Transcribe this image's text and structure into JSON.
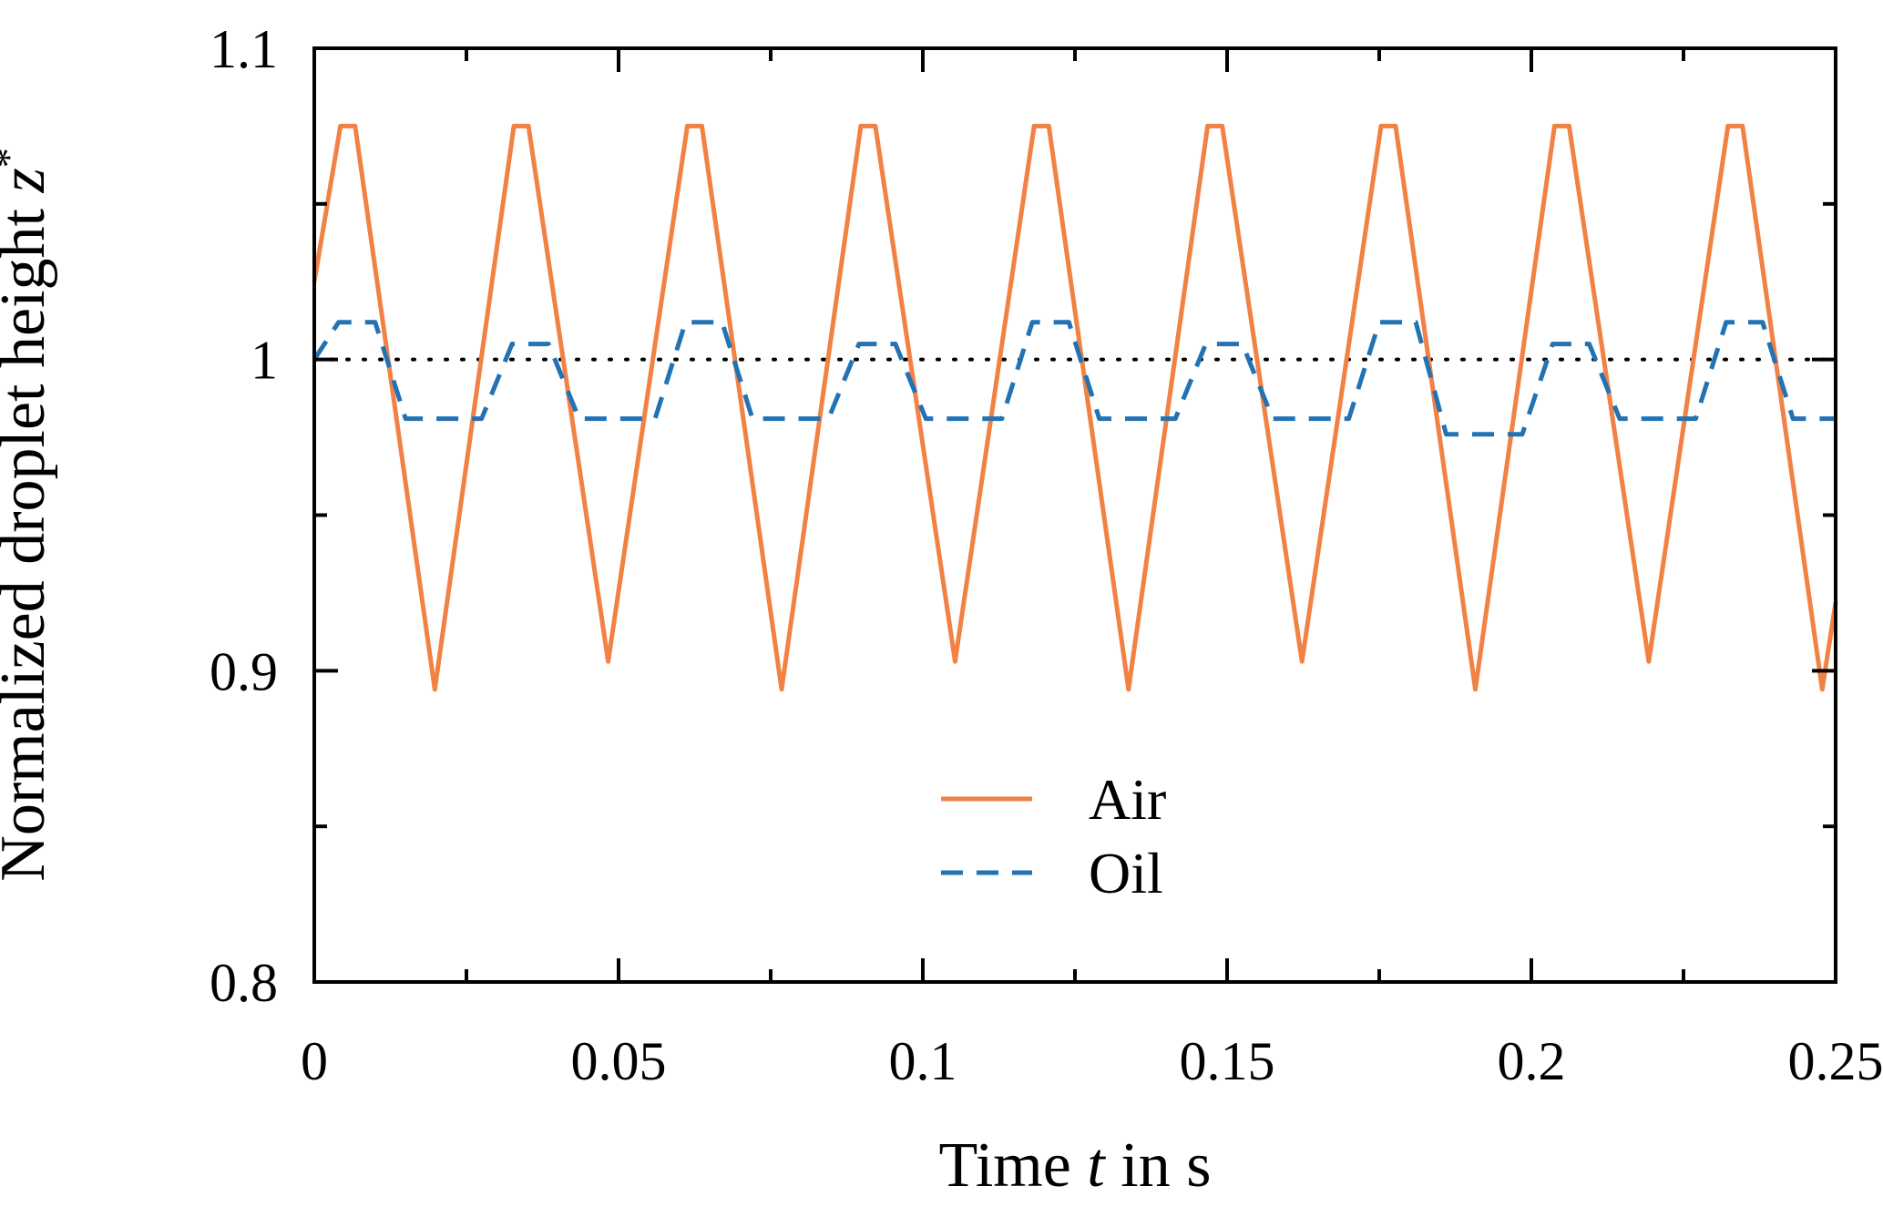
{
  "page": {
    "background": "#ffffff"
  },
  "chart_data": {
    "type": "line",
    "title": "",
    "xlabel": "Time t in s",
    "xlabel_parts": {
      "prefix": "Time ",
      "math": "t",
      "suffix": " in s"
    },
    "ylabel": "Normalized droplet height z*",
    "ylabel_parts": {
      "prefix": "Normalized droplet height ",
      "math": "z",
      "sup": "*"
    },
    "xlim": [
      0,
      0.25
    ],
    "ylim": [
      0.8,
      1.1
    ],
    "grid": "off",
    "axis_color": "#000000",
    "x_major_ticks": [
      {
        "v": 0,
        "label": "0"
      },
      {
        "v": 0.05,
        "label": "0.05"
      },
      {
        "v": 0.1,
        "label": "0.1"
      },
      {
        "v": 0.15,
        "label": "0.15"
      },
      {
        "v": 0.2,
        "label": "0.2"
      },
      {
        "v": 0.25,
        "label": "0.25"
      }
    ],
    "x_minor_ticks": [
      0.025,
      0.075,
      0.125,
      0.175,
      0.225
    ],
    "y_major_ticks": [
      {
        "v": 0.8,
        "label": "0.8"
      },
      {
        "v": 0.9,
        "label": "0.9"
      },
      {
        "v": 1.0,
        "label": "1"
      },
      {
        "v": 1.1,
        "label": "1.1"
      }
    ],
    "y_minor_ticks": [
      0.85,
      0.95,
      1.05
    ],
    "reference_line": {
      "y": 1.0,
      "style": "dotted",
      "color": "#000000"
    },
    "legend": {
      "position": "inside-lower-center",
      "entries": [
        "Air",
        "Oil"
      ]
    },
    "series": [
      {
        "name": "Air",
        "color": "#f28144",
        "dash": "solid",
        "waveform": "triangle oscillation, period ~0.0285 s, peaks ~1.075, valleys ~0.894-0.903",
        "points": [
          [
            0,
            1.025
          ],
          [
            0.0043,
            1.075
          ],
          [
            0.0067,
            1.075
          ],
          [
            0.0198,
            0.894
          ],
          [
            0.0328,
            1.075
          ],
          [
            0.0352,
            1.075
          ],
          [
            0.0483,
            0.903
          ],
          [
            0.0613,
            1.075
          ],
          [
            0.0637,
            1.075
          ],
          [
            0.0768,
            0.894
          ],
          [
            0.0898,
            1.075
          ],
          [
            0.0922,
            1.075
          ],
          [
            0.1053,
            0.903
          ],
          [
            0.1183,
            1.075
          ],
          [
            0.1207,
            1.075
          ],
          [
            0.1338,
            0.894
          ],
          [
            0.1468,
            1.075
          ],
          [
            0.1492,
            1.075
          ],
          [
            0.1623,
            0.903
          ],
          [
            0.1753,
            1.075
          ],
          [
            0.1777,
            1.075
          ],
          [
            0.1908,
            0.894
          ],
          [
            0.2038,
            1.075
          ],
          [
            0.2062,
            1.075
          ],
          [
            0.2193,
            0.903
          ],
          [
            0.2323,
            1.075
          ],
          [
            0.2347,
            1.075
          ],
          [
            0.2478,
            0.894
          ],
          [
            0.25,
            0.922
          ]
        ]
      },
      {
        "name": "Oil",
        "color": "#2272b4",
        "dash": "dashed",
        "waveform": "small oscillation about 1.0, period ~0.0285 s, peaks ~1.005-1.012, flat troughs ~0.981",
        "points": [
          [
            0,
            1.0
          ],
          [
            0.004,
            1.012
          ],
          [
            0.01,
            1.012
          ],
          [
            0.015,
            0.981
          ],
          [
            0.0275,
            0.981
          ],
          [
            0.0325,
            1.005
          ],
          [
            0.0385,
            1.005
          ],
          [
            0.0435,
            0.981
          ],
          [
            0.056,
            0.981
          ],
          [
            0.061,
            1.012
          ],
          [
            0.067,
            1.012
          ],
          [
            0.072,
            0.981
          ],
          [
            0.0845,
            0.981
          ],
          [
            0.0895,
            1.005
          ],
          [
            0.0955,
            1.005
          ],
          [
            0.1005,
            0.981
          ],
          [
            0.113,
            0.981
          ],
          [
            0.118,
            1.012
          ],
          [
            0.124,
            1.012
          ],
          [
            0.129,
            0.981
          ],
          [
            0.1415,
            0.981
          ],
          [
            0.1465,
            1.005
          ],
          [
            0.1525,
            1.005
          ],
          [
            0.1575,
            0.981
          ],
          [
            0.17,
            0.981
          ],
          [
            0.175,
            1.012
          ],
          [
            0.181,
            1.012
          ],
          [
            0.186,
            0.976
          ],
          [
            0.1985,
            0.976
          ],
          [
            0.2035,
            1.005
          ],
          [
            0.2095,
            1.005
          ],
          [
            0.2145,
            0.981
          ],
          [
            0.227,
            0.981
          ],
          [
            0.232,
            1.012
          ],
          [
            0.238,
            1.012
          ],
          [
            0.243,
            0.981
          ],
          [
            0.25,
            0.981
          ]
        ]
      }
    ]
  }
}
